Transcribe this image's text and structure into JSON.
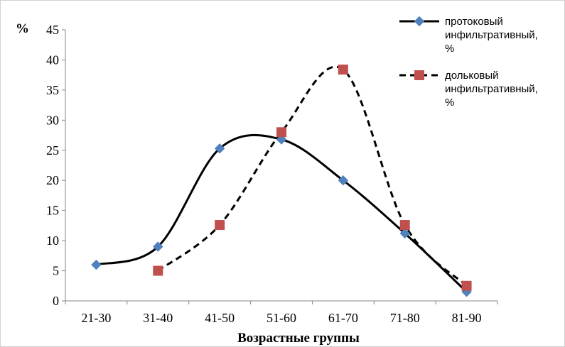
{
  "chart_data": {
    "type": "line",
    "ylabel": "%",
    "xlabel": "Возрастные группы",
    "categories": [
      "21-30",
      "31-40",
      "41-50",
      "51-60",
      "61-70",
      "71-80",
      "81-90"
    ],
    "ylim": [
      0,
      45
    ],
    "yticks": [
      0,
      5,
      10,
      15,
      20,
      25,
      30,
      35,
      40,
      45
    ],
    "grid": false,
    "legend_position": "top-right",
    "series": [
      {
        "name": "протоковый инфильтративный, %",
        "legend_lines": [
          "протоковый",
          "инфильтративный,",
          "%"
        ],
        "values": [
          6,
          9,
          25.3,
          26.8,
          20,
          11.2,
          1.5
        ],
        "color": "#4f81bd",
        "marker": "diamond",
        "line_color": "#000000",
        "line_style": "solid"
      },
      {
        "name": "дольковый инфильтративный, %",
        "legend_lines": [
          "дольковый",
          "инфильтративный,",
          "%"
        ],
        "values": [
          null,
          5,
          12.6,
          28,
          38.4,
          12.6,
          2.5
        ],
        "color": "#c0504d",
        "marker": "square",
        "line_color": "#000000",
        "line_style": "dashed"
      }
    ]
  }
}
